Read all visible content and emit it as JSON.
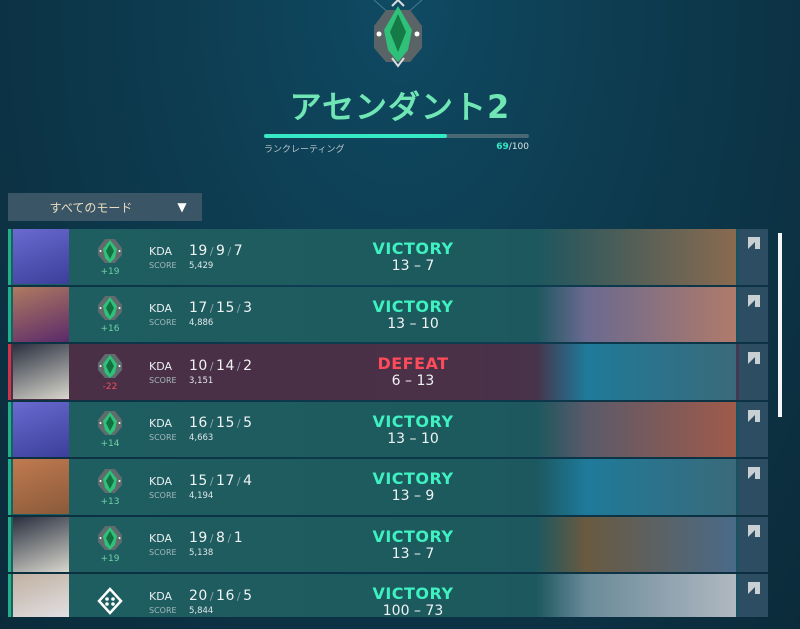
{
  "rank": {
    "title": "アセンダント2",
    "rating_label": "ランクレーティング",
    "rating_current": "69",
    "rating_max": "/100",
    "rating_fraction": 0.69,
    "icon": "ascendant-rank-icon",
    "accent": "#6fe6b4"
  },
  "filter": {
    "label": "すべてのモード",
    "icon": "caret-down-icon"
  },
  "labels": {
    "kda": "KDA",
    "score": "SCORE"
  },
  "colors": {
    "victory": "#3ff0c0",
    "defeat": "#ff4a5a",
    "bar": "#36e8c4"
  },
  "matches": [
    {
      "k": "19",
      "d": "9",
      "a": "7",
      "score": "5,429",
      "rr": "+19",
      "result": "VICTORY",
      "team": "13",
      "enemy": "7",
      "win": true,
      "portrait": [
        "#3b3f9a",
        "#6a6ad0"
      ],
      "map": [
        "#3a5a5a",
        "#8a6a50"
      ]
    },
    {
      "k": "17",
      "d": "15",
      "a": "3",
      "score": "4,886",
      "rr": "+16",
      "result": "VICTORY",
      "team": "13",
      "enemy": "10",
      "win": true,
      "portrait": [
        "#5a2a6a",
        "#b07a60"
      ],
      "map": [
        "#6a6a90",
        "#b07a6a"
      ]
    },
    {
      "k": "10",
      "d": "14",
      "a": "2",
      "score": "3,151",
      "rr": "-22",
      "result": "DEFEAT",
      "team": "6",
      "enemy": "13",
      "win": false,
      "portrait": [
        "#d8d6cc",
        "#2a3040"
      ],
      "map": [
        "#1f7a9a",
        "#3a6a7a"
      ]
    },
    {
      "k": "16",
      "d": "15",
      "a": "5",
      "score": "4,663",
      "rr": "+14",
      "result": "VICTORY",
      "team": "13",
      "enemy": "10",
      "win": true,
      "portrait": [
        "#3b3f9a",
        "#6a6ad0"
      ],
      "map": [
        "#5a5a6a",
        "#a05a4a"
      ]
    },
    {
      "k": "15",
      "d": "17",
      "a": "4",
      "score": "4,194",
      "rr": "+13",
      "result": "VICTORY",
      "team": "13",
      "enemy": "9",
      "win": true,
      "portrait": [
        "#8a5a3a",
        "#c07a50"
      ],
      "map": [
        "#1f7a9a",
        "#3a6a7a"
      ]
    },
    {
      "k": "19",
      "d": "8",
      "a": "1",
      "score": "5,138",
      "rr": "+19",
      "result": "VICTORY",
      "team": "13",
      "enemy": "7",
      "win": true,
      "portrait": [
        "#d8d6cc",
        "#2a3040"
      ],
      "map": [
        "#6a5a40",
        "#4a6a8a"
      ]
    },
    {
      "k": "20",
      "d": "16",
      "a": "5",
      "score": "5,844",
      "rr": "",
      "result": "VICTORY",
      "team": "100",
      "enemy": "73",
      "win": true,
      "portrait": [
        "#e8e8f0",
        "#c0b0a0"
      ],
      "map": [
        "#6a8a9a",
        "#b0b8c0"
      ],
      "mode_icon": "deathmatch-icon"
    }
  ]
}
